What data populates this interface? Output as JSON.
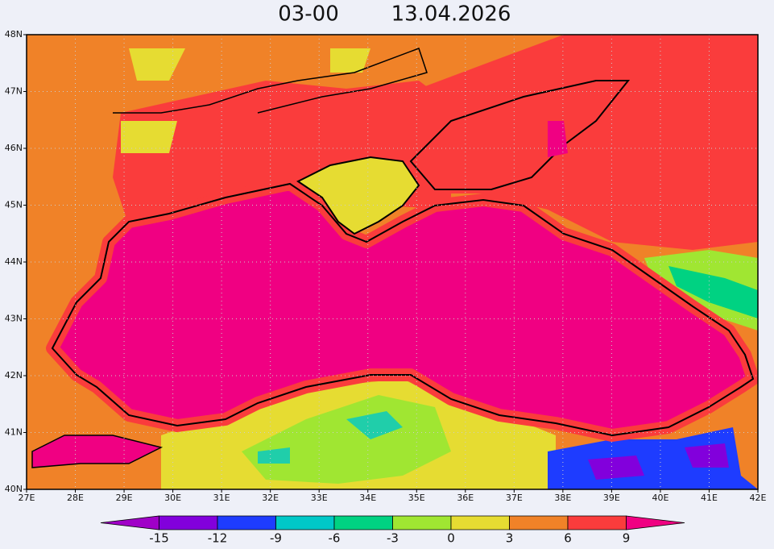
{
  "header": {
    "time": "03-00",
    "date": "13.04.2026"
  },
  "map": {
    "lon_labels": [
      "27E",
      "28E",
      "29E",
      "30E",
      "31E",
      "32E",
      "33E",
      "34E",
      "35E",
      "36E",
      "37E",
      "38E",
      "39E",
      "40E",
      "41E",
      "42E"
    ],
    "lat_labels": [
      "40N",
      "41N",
      "42N",
      "43N",
      "44N",
      "45N",
      "46N",
      "47N",
      "48N"
    ]
  },
  "colorbar": {
    "labels": [
      -15,
      -12,
      -9,
      -6,
      -3,
      0,
      3,
      6,
      9
    ],
    "colors": [
      "#a000c8",
      "#8200dc",
      "#1e3cff",
      "#00c8c8",
      "#00d282",
      "#a0e632",
      "#e6dc32",
      "#f08228",
      "#fa3c3c",
      "#f00082"
    ]
  }
}
